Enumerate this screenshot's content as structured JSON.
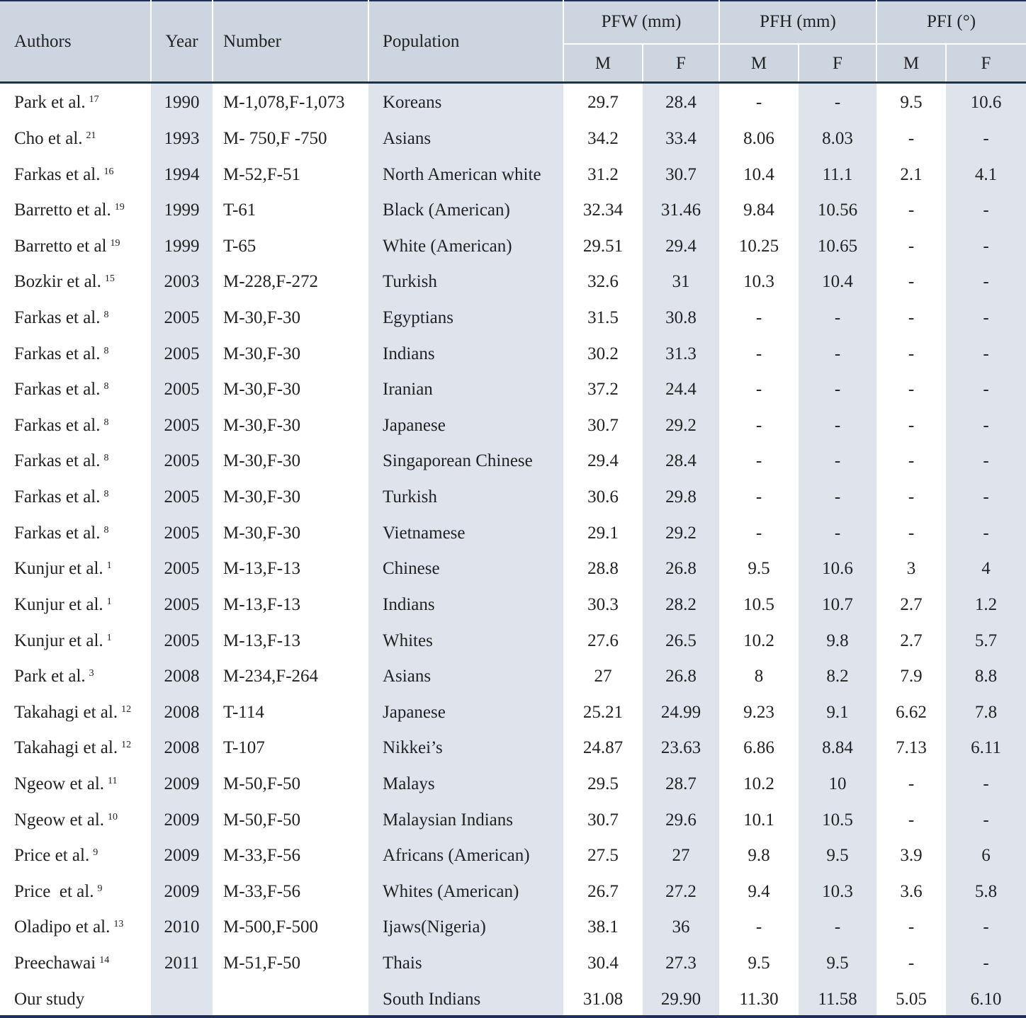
{
  "header": {
    "authors": "Authors",
    "year": "Year",
    "number": "Number",
    "population": "Population",
    "groups": [
      {
        "name": "PFW (mm)",
        "sub": [
          "M",
          "F"
        ]
      },
      {
        "name": "PFH (mm)",
        "sub": [
          "M",
          "F"
        ]
      },
      {
        "name": "PFI (°)",
        "sub": [
          "M",
          "F"
        ]
      }
    ]
  },
  "rows": [
    {
      "authors": "Park et al.",
      "ref": "17",
      "year": "1990",
      "number": "M-1,078,F-1,073",
      "population": "Koreans",
      "values": [
        "29.7",
        "28.4",
        "-",
        "-",
        "9.5",
        "10.6"
      ]
    },
    {
      "authors": "Cho et al.",
      "ref": "21",
      "year": "1993",
      "number": "M- 750,F -750",
      "population": "Asians",
      "values": [
        "34.2",
        "33.4",
        "8.06",
        "8.03",
        "-",
        "-"
      ]
    },
    {
      "authors": "Farkas et al.",
      "ref": "16",
      "year": "1994",
      "number": "M-52,F-51",
      "population": "North American white",
      "values": [
        "31.2",
        "30.7",
        "10.4",
        "11.1",
        "2.1",
        "4.1"
      ]
    },
    {
      "authors": "Barretto et al.",
      "ref": "19",
      "year": "1999",
      "number": "T-61",
      "population": "Black (American)",
      "values": [
        "32.34",
        "31.46",
        "9.84",
        "10.56",
        "-",
        "-"
      ]
    },
    {
      "authors": "Barretto et al",
      "ref": "19",
      "year": "1999",
      "number": "T-65",
      "population": "White (American)",
      "values": [
        "29.51",
        "29.4",
        "10.25",
        "10.65",
        "-",
        "-"
      ]
    },
    {
      "authors": "Bozkir et al.",
      "ref": "15",
      "year": "2003",
      "number": "M-228,F-272",
      "population": "Turkish",
      "values": [
        "32.6",
        "31",
        "10.3",
        "10.4",
        "-",
        "-"
      ]
    },
    {
      "authors": "Farkas et al.",
      "ref": "8",
      "year": "2005",
      "number": "M-30,F-30",
      "population": "Egyptians",
      "values": [
        "31.5",
        "30.8",
        "-",
        "-",
        "-",
        "-"
      ]
    },
    {
      "authors": "Farkas et al.",
      "ref": "8",
      "year": "2005",
      "number": "M-30,F-30",
      "population": "Indians",
      "values": [
        "30.2",
        "31.3",
        "-",
        "-",
        "-",
        "-"
      ]
    },
    {
      "authors": "Farkas et al.",
      "ref": "8",
      "year": "2005",
      "number": "M-30,F-30",
      "population": "Iranian",
      "values": [
        "37.2",
        "24.4",
        "-",
        "-",
        "-",
        "-"
      ]
    },
    {
      "authors": "Farkas et al.",
      "ref": "8",
      "year": "2005",
      "number": "M-30,F-30",
      "population": "Japanese",
      "values": [
        "30.7",
        "29.2",
        "-",
        "-",
        "-",
        "-"
      ]
    },
    {
      "authors": "Farkas et al.",
      "ref": "8",
      "year": "2005",
      "number": "M-30,F-30",
      "population": "Singaporean Chinese",
      "values": [
        "29.4",
        "28.4",
        "-",
        "-",
        "-",
        "-"
      ]
    },
    {
      "authors": "Farkas et al.",
      "ref": "8",
      "year": "2005",
      "number": "M-30,F-30",
      "population": "Turkish",
      "values": [
        "30.6",
        "29.8",
        "-",
        "-",
        "-",
        "-"
      ]
    },
    {
      "authors": "Farkas et al.",
      "ref": "8",
      "year": "2005",
      "number": "M-30,F-30",
      "population": "Vietnamese",
      "values": [
        "29.1",
        "29.2",
        "-",
        "-",
        "-",
        "-"
      ]
    },
    {
      "authors": "Kunjur et al.",
      "ref": "1",
      "year": "2005",
      "number": "M-13,F-13",
      "population": "Chinese",
      "values": [
        "28.8",
        "26.8",
        "9.5",
        "10.6",
        "3",
        "4"
      ]
    },
    {
      "authors": "Kunjur et al.",
      "ref": "1",
      "year": "2005",
      "number": "M-13,F-13",
      "population": "Indians",
      "values": [
        "30.3",
        "28.2",
        "10.5",
        "10.7",
        "2.7",
        "1.2"
      ]
    },
    {
      "authors": "Kunjur et al.",
      "ref": "1",
      "year": "2005",
      "number": "M-13,F-13",
      "population": "Whites",
      "values": [
        "27.6",
        "26.5",
        "10.2",
        "9.8",
        "2.7",
        "5.7"
      ]
    },
    {
      "authors": "Park et al.",
      "ref": "3",
      "year": "2008",
      "number": "M-234,F-264",
      "population": "Asians",
      "values": [
        "27",
        "26.8",
        "8",
        "8.2",
        "7.9",
        "8.8"
      ]
    },
    {
      "authors": "Takahagi et al.",
      "ref": "12",
      "year": "2008",
      "number": "T-114",
      "population": "Japanese",
      "values": [
        "25.21",
        "24.99",
        "9.23",
        "9.1",
        "6.62",
        "7.8"
      ]
    },
    {
      "authors": "Takahagi et al.",
      "ref": "12",
      "year": "2008",
      "number": "T-107",
      "population": "Nikkei’s",
      "values": [
        "24.87",
        "23.63",
        "6.86",
        "8.84",
        "7.13",
        "6.11"
      ]
    },
    {
      "authors": "Ngeow et al.",
      "ref": "11",
      "year": "2009",
      "number": "M-50,F-50",
      "population": "Malays",
      "values": [
        "29.5",
        "28.7",
        "10.2",
        "10",
        "-",
        "-"
      ]
    },
    {
      "authors": "Ngeow et al.",
      "ref": "10",
      "year": "2009",
      "number": "M-50,F-50",
      "population": "Malaysian Indians",
      "values": [
        "30.7",
        "29.6",
        "10.1",
        "10.5",
        "-",
        "-"
      ]
    },
    {
      "authors": "Price et al.",
      "ref": "9",
      "year": "2009",
      "number": "M-33,F-56",
      "population": "Africans (American)",
      "values": [
        "27.5",
        "27",
        "9.8",
        "9.5",
        "3.9",
        "6"
      ]
    },
    {
      "authors": "Price  et al.",
      "ref": "9",
      "year": "2009",
      "number": "M-33,F-56",
      "population": "Whites (American)",
      "values": [
        "26.7",
        "27.2",
        "9.4",
        "10.3",
        "3.6",
        "5.8"
      ]
    },
    {
      "authors": "Oladipo et al.",
      "ref": "13",
      "year": "2010",
      "number": "M-500,F-500",
      "population": "Ijaws(Nigeria)",
      "values": [
        "38.1",
        "36",
        "-",
        "-",
        "-",
        "-"
      ]
    },
    {
      "authors": "Preechawai",
      "ref": "14",
      "year": "2011",
      "number": "M-51,F-50",
      "population": "Thais",
      "values": [
        "30.4",
        "27.3",
        "9.5",
        "9.5",
        "-",
        "-"
      ]
    },
    {
      "authors": "Our study",
      "population": "South Indians",
      "values": [
        "31.08",
        "29.90",
        "11.30",
        "11.58",
        "5.05",
        "6.10"
      ]
    }
  ]
}
